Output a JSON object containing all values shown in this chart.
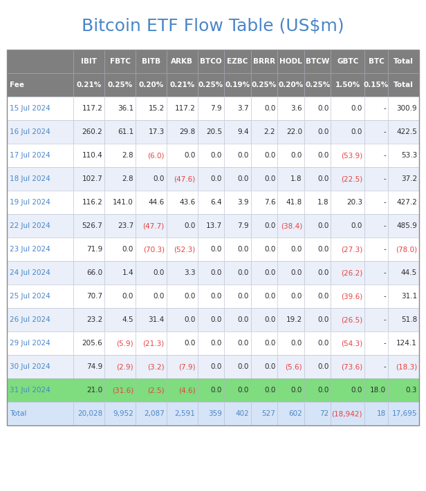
{
  "title": "Bitcoin ETF Flow Table (US$m)",
  "title_color": "#4a86c8",
  "title_fontsize": 18,
  "headers": [
    "",
    "IBIT",
    "FBTC",
    "BITB",
    "ARKB",
    "BTCO",
    "EZBC",
    "BRRR",
    "HODL",
    "BTCW",
    "GBTC",
    "BTC",
    "Total"
  ],
  "fees": [
    "Fee",
    "0.21%",
    "0.25%",
    "0.20%",
    "0.21%",
    "0.25%",
    "0.19%",
    "0.25%",
    "0.20%",
    "0.25%",
    "1.50%",
    "0.15%",
    "Total"
  ],
  "rows": [
    [
      "15 Jul 2024",
      "117.2",
      "36.1",
      "15.2",
      "117.2",
      "7.9",
      "3.7",
      "0.0",
      "3.6",
      "0.0",
      "0.0",
      "-",
      "300.9"
    ],
    [
      "16 Jul 2024",
      "260.2",
      "61.1",
      "17.3",
      "29.8",
      "20.5",
      "9.4",
      "2.2",
      "22.0",
      "0.0",
      "0.0",
      "-",
      "422.5"
    ],
    [
      "17 Jul 2024",
      "110.4",
      "2.8",
      "(6.0)",
      "0.0",
      "0.0",
      "0.0",
      "0.0",
      "0.0",
      "0.0",
      "(53.9)",
      "-",
      "53.3"
    ],
    [
      "18 Jul 2024",
      "102.7",
      "2.8",
      "0.0",
      "(47.6)",
      "0.0",
      "0.0",
      "0.0",
      "1.8",
      "0.0",
      "(22.5)",
      "-",
      "37.2"
    ],
    [
      "19 Jul 2024",
      "116.2",
      "141.0",
      "44.6",
      "43.6",
      "6.4",
      "3.9",
      "7.6",
      "41.8",
      "1.8",
      "20.3",
      "-",
      "427.2"
    ],
    [
      "22 Jul 2024",
      "526.7",
      "23.7",
      "(47.7)",
      "0.0",
      "13.7",
      "7.9",
      "0.0",
      "(38.4)",
      "0.0",
      "0.0",
      "-",
      "485.9"
    ],
    [
      "23 Jul 2024",
      "71.9",
      "0.0",
      "(70.3)",
      "(52.3)",
      "0.0",
      "0.0",
      "0.0",
      "0.0",
      "0.0",
      "(27.3)",
      "-",
      "(78.0)"
    ],
    [
      "24 Jul 2024",
      "66.0",
      "1.4",
      "0.0",
      "3.3",
      "0.0",
      "0.0",
      "0.0",
      "0.0",
      "0.0",
      "(26.2)",
      "-",
      "44.5"
    ],
    [
      "25 Jul 2024",
      "70.7",
      "0.0",
      "0.0",
      "0.0",
      "0.0",
      "0.0",
      "0.0",
      "0.0",
      "0.0",
      "(39.6)",
      "-",
      "31.1"
    ],
    [
      "26 Jul 2024",
      "23.2",
      "4.5",
      "31.4",
      "0.0",
      "0.0",
      "0.0",
      "0.0",
      "19.2",
      "0.0",
      "(26.5)",
      "-",
      "51.8"
    ],
    [
      "29 Jul 2024",
      "205.6",
      "(5.9)",
      "(21.3)",
      "0.0",
      "0.0",
      "0.0",
      "0.0",
      "0.0",
      "0.0",
      "(54.3)",
      "-",
      "124.1"
    ],
    [
      "30 Jul 2024",
      "74.9",
      "(2.9)",
      "(3.2)",
      "(7.9)",
      "0.0",
      "0.0",
      "0.0",
      "(5.6)",
      "0.0",
      "(73.6)",
      "-",
      "(18.3)"
    ],
    [
      "31 Jul 2024",
      "21.0",
      "(31.6)",
      "(2.5)",
      "(4.6)",
      "0.0",
      "0.0",
      "0.0",
      "0.0",
      "0.0",
      "0.0",
      "18.0",
      "0.3"
    ],
    [
      "Total",
      "20,028",
      "9,952",
      "2,087",
      "2,591",
      "359",
      "402",
      "527",
      "602",
      "72",
      "(18,942)",
      "18",
      "17,695"
    ]
  ],
  "header_bg": "#7f7f7f",
  "fee_bg": "#7f7f7f",
  "header_text_color": "#ffffff",
  "fee_text_color": "#ffffff",
  "negative_color": "#e84040",
  "positive_color": "#2c2c2c",
  "date_color": "#4a86c8",
  "total_text_color": "#4a86c8",
  "total_neg_color": "#e84040",
  "row_even_bg": "#ffffff",
  "row_odd_bg": "#eaeff9",
  "highlight_bg": "#7fdc7f",
  "total_row_bg": "#d6e4f7",
  "border_color": "#b0b8c8",
  "bg_color": "#ffffff",
  "col_widths": [
    1.55,
    0.72,
    0.72,
    0.72,
    0.72,
    0.62,
    0.62,
    0.62,
    0.62,
    0.62,
    0.78,
    0.55,
    0.72
  ]
}
